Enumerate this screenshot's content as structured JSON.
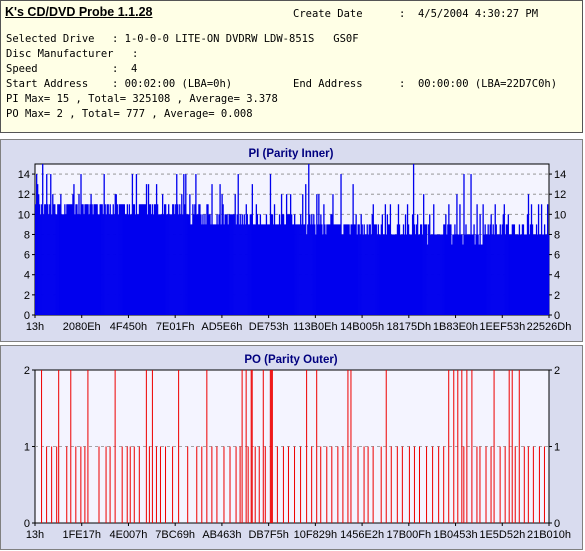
{
  "header": {
    "app_title": "K's CD/DVD Probe 1.1.28",
    "create_date_label": "Create Date",
    "create_date_value": ":  4/5/2004 4:30:27 PM",
    "selected_drive_label": "Selected Drive",
    "selected_drive_value": ": 1-0-0-0 LITE-ON DVDRW LDW-851S   GS0F",
    "disc_manufacturer_label": "Disc Manufacturer",
    "disc_manufacturer_value": ":",
    "speed_label": "Speed",
    "speed_value": ":  4",
    "start_address_label": "Start Address",
    "start_address_value": ": 00:02:00 (LBA=0h)",
    "end_address_label": "End Address",
    "end_address_value": ":  00:00:00 (LBA=22D7C0h)",
    "pi_summary": "PI Max= 15 , Total= 325108 , Average= 3.378",
    "po_summary": "PO Max= 2 , Total= 777 , Average= 0.008"
  },
  "colors": {
    "pi_bar": "#0000ee",
    "po_bar": "#ee0000",
    "plot_bg": "#f4f4ff",
    "panel_bg": "#d9dcef",
    "title_color": "#00007f"
  },
  "chart_data": [
    {
      "type": "bar",
      "title": "PI (Parity Inner)",
      "ylim": [
        0,
        15
      ],
      "y_ticks": [
        0,
        2,
        4,
        6,
        8,
        10,
        12,
        14
      ],
      "x_tick_labels": [
        "13h",
        "2080Eh",
        "4F450h",
        "7E01Fh",
        "AD5E6h",
        "DE753h",
        "113B0Eh",
        "14B005h",
        "18175Dh",
        "1B83E0h",
        "1EEF53h",
        "22526Dh"
      ],
      "grid": "horizontal-dashed",
      "series": [
        {
          "bins": 510,
          "baseline_profile": [
            [
              0,
              11
            ],
            [
              120,
              10.5
            ],
            [
              200,
              9.5
            ],
            [
              300,
              8.8
            ],
            [
              400,
              8.2
            ],
            [
              510,
              8.2
            ]
          ],
          "spike_max": 15,
          "max": 15,
          "total": 325108,
          "average": 3.378
        }
      ]
    },
    {
      "type": "bar",
      "title": "PO (Parity Outer)",
      "ylim": [
        0,
        2
      ],
      "y_ticks": [
        0,
        1,
        2
      ],
      "x_tick_labels": [
        "13h",
        "1FE17h",
        "4E007h",
        "7BC69h",
        "AB463h",
        "DB7F5h",
        "10F829h",
        "1456E2h",
        "17B00Fh",
        "1B0453h",
        "1E5D52h",
        "21B010h"
      ],
      "grid": "horizontal-dashed",
      "series": [
        {
          "bins": 510,
          "value2_bins": [
            6,
            23,
            35,
            52,
            79,
            110,
            116,
            142,
            170,
            205,
            209,
            214,
            215,
            226,
            233,
            234,
            235,
            269,
            279,
            310,
            313,
            348,
            410,
            415,
            419,
            423,
            428,
            433,
            455,
            470,
            473,
            480
          ],
          "value1_bins": [
            11,
            16,
            21,
            31,
            40,
            45,
            49,
            63,
            70,
            74,
            86,
            91,
            94,
            98,
            103,
            113,
            120,
            124,
            129,
            136,
            151,
            160,
            165,
            175,
            180,
            187,
            193,
            199,
            203,
            211,
            218,
            222,
            228,
            240,
            246,
            251,
            257,
            263,
            274,
            283,
            289,
            294,
            300,
            305,
            320,
            326,
            330,
            335,
            343,
            353,
            359,
            364,
            371,
            376,
            381,
            388,
            394,
            400,
            405,
            425,
            438,
            441,
            447,
            452,
            461,
            466,
            476,
            485,
            489,
            494,
            500,
            505
          ],
          "max": 2,
          "total": 777,
          "average": 0.008
        }
      ]
    }
  ]
}
